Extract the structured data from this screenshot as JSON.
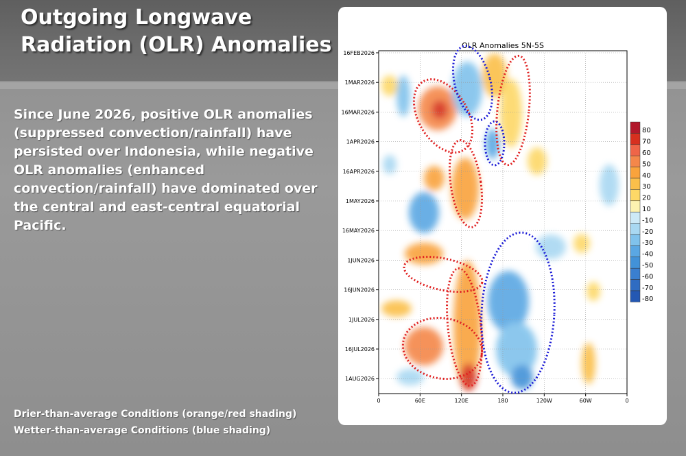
{
  "slide": {
    "title_line1": "Outgoing Longwave",
    "title_line2": "Radiation (OLR) Anomalies",
    "body": "Since June 2026, positive OLR anomalies (suppressed convection/rainfall) have persisted over Indonesia, while negative OLR anomalies (enhanced convection/rainfall) have dominated over the central and east-central equatorial Pacific.",
    "note_dry": "Drier-than-average Conditions (orange/red shading)",
    "note_wet": "Wetter-than-average Conditions (blue shading)"
  },
  "figure": {
    "title": "OLR Anomalies 5N-5S",
    "y_ticks": [
      "16FEB2026",
      "1MAR2026",
      "16MAR2026",
      "1APR2026",
      "16APR2026",
      "1MAY2026",
      "16MAY2026",
      "1JUN2026",
      "16JUN2026",
      "1JUL2026",
      "16JUL2026",
      "1AUG2026"
    ],
    "x_ticks": [
      "0",
      "60E",
      "120E",
      "180",
      "120W",
      "60W",
      "0"
    ],
    "colorbar": {
      "labels": [
        "80",
        "70",
        "60",
        "50",
        "40",
        "30",
        "20",
        "10",
        "-10",
        "-20",
        "-30",
        "-40",
        "-50",
        "-60",
        "-70",
        "-80"
      ],
      "colors": [
        "#b2182b",
        "#d7301f",
        "#ef6548",
        "#f4874a",
        "#f9a33c",
        "#fbbf4a",
        "#fdd867",
        "#fdf2b0",
        "#cde9f7",
        "#a9d8f2",
        "#80c2ec",
        "#5aa7e3",
        "#4292d8",
        "#3a7fcf",
        "#2f6cc2",
        "#2458b3"
      ]
    },
    "colors": {
      "dry_outline": "#e02020",
      "wet_outline": "#1a1ad6"
    }
  }
}
